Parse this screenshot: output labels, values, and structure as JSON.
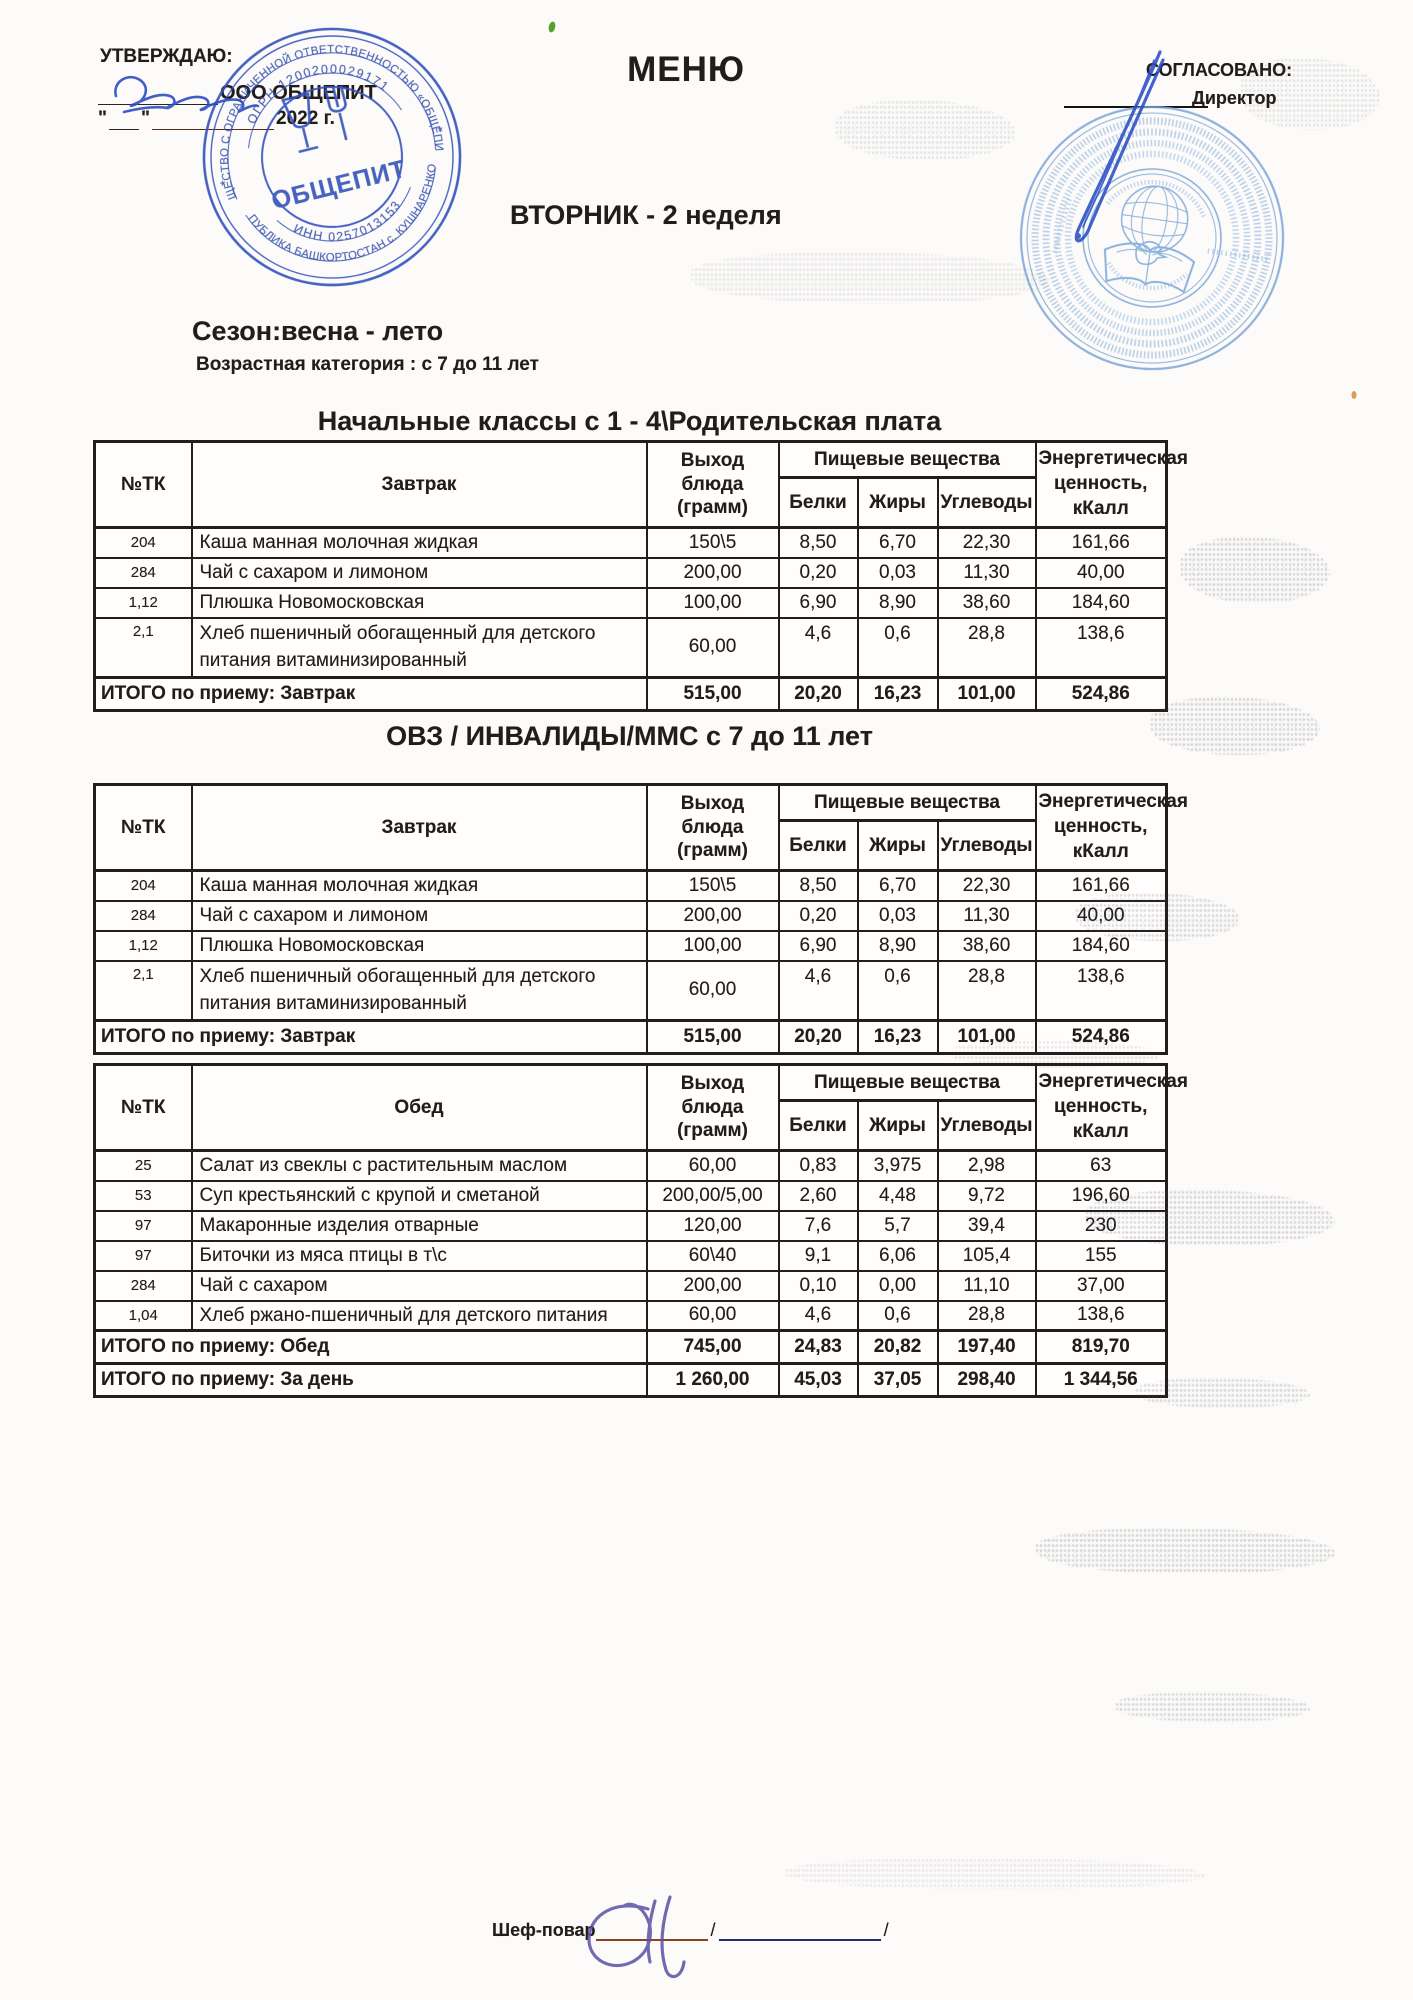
{
  "approve": {
    "label": "УТВЕРЖДАЮ:",
    "org": "ООО ОБЩЕПИТ",
    "quote": "\"",
    "date_suffix": "2022 г."
  },
  "agree": {
    "label": "СОГЛАСОВАНО:",
    "role": "Директор"
  },
  "title": "МЕНЮ",
  "day_title": "ВТОРНИК - 2 неделя",
  "season": "Сезон:весна - лето",
  "age": "Возрастная категория : с 7 до 11 лет",
  "section1": "Начальные классы  с 1 - 4\\Родительская плата",
  "section2": "ОВЗ / ИНВАЛИДЫ/ММС с 7 до 11 лет",
  "stamp_left": {
    "outer_top": "ОБЩЕСТВО С ОГРАНИЧЕННОЙ ОТВЕТСТВЕННОСТЬЮ «ОБЩЕПИТ»",
    "outer_bottom": "РЕСПУБЛИКА БАШКОРТОСТАН с. КУШНАРЕНКОВО",
    "ogrn": "ОГРН 1200200029171",
    "inn": "ИНН 0257013153",
    "name": "ОБЩЕПИТ",
    "star": "*"
  },
  "columns": {
    "tk": "№ТК",
    "output_line1": "Выход блюда",
    "output_line2": "(грамм)",
    "nutrients_group": "Пищевые вещества",
    "protein": "Белки",
    "fat": "Жиры",
    "carbs": "Углеводы",
    "energy_line1": "Энергетическая",
    "energy_line2": "ценность, кКалл"
  },
  "tables": [
    {
      "meal": "Завтрак",
      "rows": [
        [
          "204",
          "Каша манная молочная жидкая",
          "150\\5",
          "8,50",
          "6,70",
          "22,30",
          "161,66"
        ],
        [
          "284",
          "Чай с сахаром и лимоном",
          "200,00",
          "0,20",
          "0,03",
          "11,30",
          "40,00"
        ],
        [
          "1,12",
          "Плюшка Новомосковская",
          "100,00",
          "6,90",
          "8,90",
          "38,60",
          "184,60"
        ],
        [
          "2,1",
          "Хлеб пшеничный обогащенный для детского питания витаминизированный",
          "60,00",
          "4,6",
          "0,6",
          "28,8",
          "138,6"
        ]
      ],
      "totals": [
        [
          "ИТОГО по приему: Завтрак",
          "515,00",
          "20,20",
          "16,23",
          "101,00",
          "524,86"
        ]
      ]
    },
    {
      "meal": "Завтрак",
      "rows": [
        [
          "204",
          "Каша манная молочная жидкая",
          "150\\5",
          "8,50",
          "6,70",
          "22,30",
          "161,66"
        ],
        [
          "284",
          "Чай с сахаром и лимоном",
          "200,00",
          "0,20",
          "0,03",
          "11,30",
          "40,00"
        ],
        [
          "1,12",
          "Плюшка Новомосковская",
          "100,00",
          "6,90",
          "8,90",
          "38,60",
          "184,60"
        ],
        [
          "2,1",
          "Хлеб пшеничный обогащенный для детского питания витаминизированный",
          "60,00",
          "4,6",
          "0,6",
          "28,8",
          "138,6"
        ]
      ],
      "totals": [
        [
          "ИТОГО по приему: Завтрак",
          "515,00",
          "20,20",
          "16,23",
          "101,00",
          "524,86"
        ]
      ]
    },
    {
      "meal": "Обед",
      "rows": [
        [
          "25",
          "Салат из свеклы с растительным маслом",
          "60,00",
          "0,83",
          "3,975",
          "2,98",
          "63"
        ],
        [
          "53",
          "Суп крестьянский с крупой и сметаной",
          "200,00/5,00",
          "2,60",
          "4,48",
          "9,72",
          "196,60"
        ],
        [
          "97",
          "Макаронные изделия отварные",
          "120,00",
          "7,6",
          "5,7",
          "39,4",
          "230"
        ],
        [
          "97",
          "Биточки из мяса птицы в т\\с",
          "60\\40",
          "9,1",
          "6,06",
          "105,4",
          "155"
        ],
        [
          "284",
          "Чай с сахаром",
          "200,00",
          "0,10",
          "0,00",
          "11,10",
          "37,00"
        ],
        [
          "1,04",
          "Хлеб ржано-пшеничный для детского питания",
          "60,00",
          "4,6",
          "0,6",
          "28,8",
          "138,6"
        ]
      ],
      "totals": [
        [
          "ИТОГО по приему: Обед",
          "745,00",
          "24,83",
          "20,82",
          "197,40",
          "819,70"
        ],
        [
          "ИТОГО по приему: За день",
          "1 260,00",
          "45,03",
          "37,05",
          "298,40",
          "1 344,56"
        ]
      ]
    }
  ],
  "chef": {
    "label": "Шеф-повар",
    "slash": "/"
  },
  "colors": {
    "stamp_blue": "#3352bd",
    "school_stamp_blue": "#7aa5d9",
    "pen_blue": "#2b4fc4",
    "chef_signature_purple": "#5b51a5",
    "green_mark": "#57a02c",
    "table_border": "#231e1a"
  }
}
